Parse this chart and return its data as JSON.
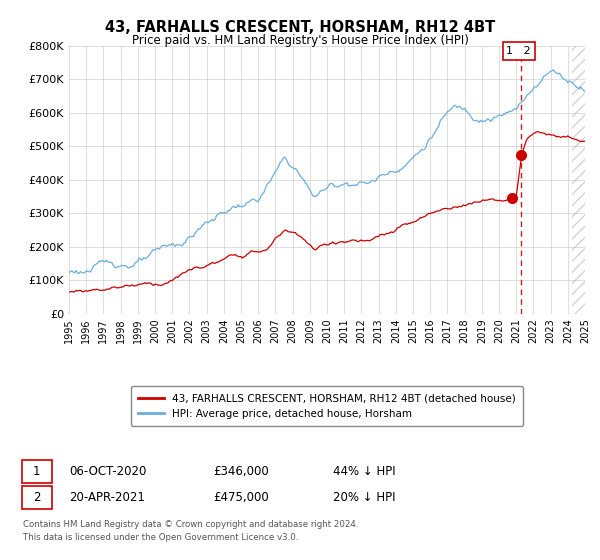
{
  "title": "43, FARHALLS CRESCENT, HORSHAM, RH12 4BT",
  "subtitle": "Price paid vs. HM Land Registry's House Price Index (HPI)",
  "ylim": [
    0,
    800000
  ],
  "xlim": [
    1995,
    2025
  ],
  "yticks": [
    0,
    100000,
    200000,
    300000,
    400000,
    500000,
    600000,
    700000,
    800000
  ],
  "ytick_labels": [
    "£0",
    "£100K",
    "£200K",
    "£300K",
    "£400K",
    "£500K",
    "£600K",
    "£700K",
    "£800K"
  ],
  "xticks": [
    1995,
    1996,
    1997,
    1998,
    1999,
    2000,
    2001,
    2002,
    2003,
    2004,
    2005,
    2006,
    2007,
    2008,
    2009,
    2010,
    2011,
    2012,
    2013,
    2014,
    2015,
    2016,
    2017,
    2018,
    2019,
    2020,
    2021,
    2022,
    2023,
    2024,
    2025
  ],
  "hpi_color": "#6aaee0",
  "price_color": "#cc0000",
  "vline_color": "#cc0000",
  "background_color": "#ffffff",
  "grid_color": "#d0d0d0",
  "legend_label_price": "43, FARHALLS CRESCENT, HORSHAM, RH12 4BT (detached house)",
  "legend_label_hpi": "HPI: Average price, detached house, Horsham",
  "annotation1_date": "06-OCT-2020",
  "annotation1_price": "£346,000",
  "annotation1_hpi": "44% ↓ HPI",
  "annotation2_date": "20-APR-2021",
  "annotation2_price": "£475,000",
  "annotation2_hpi": "20% ↓ HPI",
  "footer1": "Contains HM Land Registry data © Crown copyright and database right 2024.",
  "footer2": "This data is licensed under the Open Government Licence v3.0.",
  "vline_x": 2021.3,
  "marker1_x": 2020.77,
  "marker1_y": 346000,
  "marker2_x": 2021.3,
  "marker2_y": 475000,
  "hatch_start": 2024.25,
  "hatch_end": 2025.0
}
